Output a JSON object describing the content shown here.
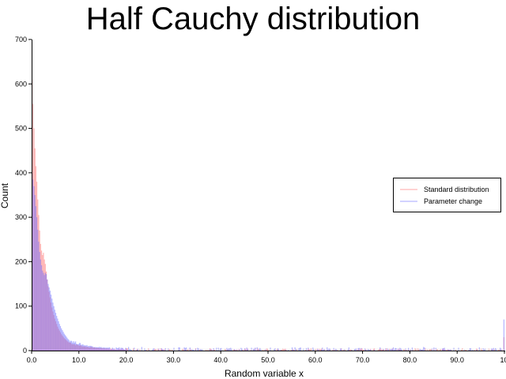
{
  "chart_data": {
    "type": "bar",
    "title": "Half Cauchy distribution",
    "xlabel": "Random variable x",
    "ylabel": "Count",
    "xlim": [
      0,
      100
    ],
    "ylim": [
      0,
      700
    ],
    "xticks": [
      "0.0",
      "10.0",
      "20.0",
      "30.0",
      "40.0",
      "50.0",
      "60.0",
      "70.0",
      "80.0",
      "90.0",
      "100"
    ],
    "yticks": [
      "0",
      "100",
      "200",
      "300",
      "400",
      "500",
      "600",
      "700"
    ],
    "grid": false,
    "legend_position": "right",
    "bin_width": 0.2,
    "series": [
      {
        "name": "Standard distribution",
        "color": "#ff6b6b",
        "bin_counts": [
          610,
          555,
          500,
          455,
          415,
          380,
          340,
          305,
          270,
          240,
          225,
          215,
          220,
          205,
          195,
          178,
          160,
          145,
          132,
          120,
          108,
          97,
          88,
          80,
          72,
          66,
          60,
          54,
          49,
          45,
          41,
          37,
          34,
          31,
          28,
          26,
          24,
          22,
          20,
          18
        ],
        "tail_level": 4,
        "overflow_at_max": 30
      },
      {
        "name": "Parameter change",
        "color": "#6b6bff",
        "bin_counts": [
          400,
          385,
          370,
          350,
          325,
          300,
          272,
          245,
          222,
          205,
          192,
          180,
          175,
          170,
          175,
          172,
          160,
          150,
          142,
          135,
          126,
          117,
          108,
          100,
          92,
          85,
          78,
          72,
          66,
          60,
          55,
          50,
          46,
          42,
          38,
          35,
          32,
          29,
          26,
          24
        ],
        "tail_level": 6,
        "overflow_at_max": 70
      }
    ]
  }
}
